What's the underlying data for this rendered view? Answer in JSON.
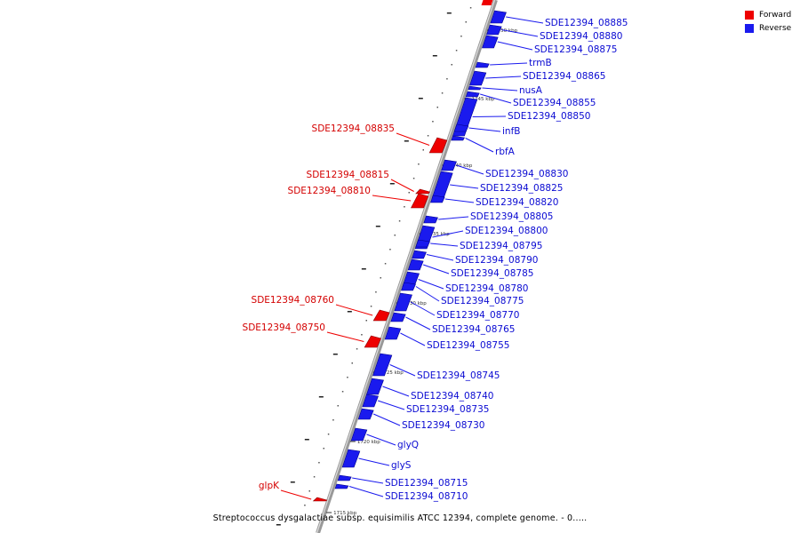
{
  "title": "Streptococcus dysgalactiae subsp. equisimilis ATCC 12394, complete genome. - 0.....",
  "legend": [
    {
      "label": "Forward",
      "color": "#ee0000"
    },
    {
      "label": "Reverse",
      "color": "#1a1aee"
    }
  ],
  "colors": {
    "forward": "#ee0000",
    "reverse": "#1a1aee",
    "backbone": "#999999"
  },
  "scale_ticks": [
    "1750 kbp",
    "1745 kbp",
    "1740 kbp",
    "1735 kbp",
    "1730 kbp",
    "1725 kbp",
    "1720 kbp",
    "1715 kbp"
  ],
  "forward_genes": [
    "SDE12394_08835",
    "SDE12394_08815",
    "SDE12394_08810",
    "SDE12394_08760",
    "SDE12394_08750",
    "glpK"
  ],
  "reverse_genes": [
    "SDE12394_08885",
    "SDE12394_08880",
    "SDE12394_08875",
    "trmB",
    "SDE12394_08865",
    "nusA",
    "SDE12394_08855",
    "SDE12394_08850",
    "infB",
    "rbfA",
    "SDE12394_08830",
    "SDE12394_08825",
    "SDE12394_08820",
    "SDE12394_08805",
    "SDE12394_08800",
    "SDE12394_08795",
    "SDE12394_08790",
    "SDE12394_08785",
    "SDE12394_08780",
    "SDE12394_08775",
    "SDE12394_08770",
    "SDE12394_08765",
    "SDE12394_08755",
    "SDE12394_08745",
    "SDE12394_08740",
    "SDE12394_08735",
    "SDE12394_08730",
    "glyQ",
    "glyS",
    "SDE12394_08715",
    "SDE12394_08710"
  ]
}
